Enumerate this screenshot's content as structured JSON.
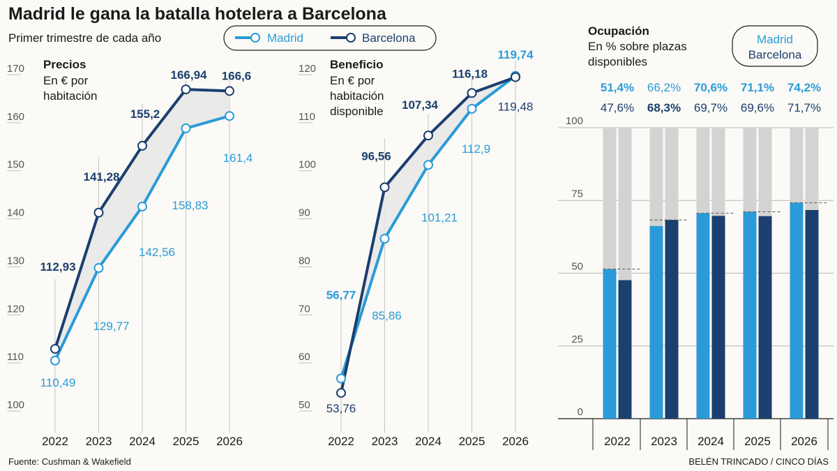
{
  "title": "Madrid le gana la batalla hotelera a Barcelona",
  "subtitle": "Primer trimestre de cada año",
  "legend": {
    "madrid": "Madrid",
    "barcelona": "Barcelona"
  },
  "colors": {
    "madrid": "#2a9bd8",
    "barcelona": "#1b3f6e",
    "fill": "#e8e8e8",
    "gray_bar": "#d3d3d3"
  },
  "footer": {
    "source": "Fuente: Cushman & Wakefield",
    "credit": "BELÉN TRINCADO / CINCO DÍAS"
  },
  "chart_data": [
    {
      "type": "line",
      "title": "Precios",
      "unit_lines": [
        "En € por",
        "habitación"
      ],
      "x": [
        "2022",
        "2023",
        "2024",
        "2025",
        "2026"
      ],
      "ylim": [
        100,
        170
      ],
      "yticks": [
        100,
        110,
        120,
        130,
        140,
        150,
        160,
        170
      ],
      "series": [
        {
          "name": "Madrid",
          "values": [
            110.49,
            129.77,
            142.56,
            158.83,
            161.4
          ],
          "labels": [
            "110,49",
            "129,77",
            "142,56",
            "158,83",
            "161,4"
          ]
        },
        {
          "name": "Barcelona",
          "values": [
            112.93,
            141.28,
            155.2,
            166.94,
            166.6
          ],
          "labels": [
            "112,93",
            "141,28",
            "155,2",
            "166,94",
            "166,6"
          ]
        }
      ]
    },
    {
      "type": "line",
      "title": "Beneficio",
      "unit_lines": [
        "En € por",
        "habitación",
        "disponible"
      ],
      "x": [
        "2022",
        "2023",
        "2024",
        "2025",
        "2026"
      ],
      "ylim": [
        50,
        120
      ],
      "yticks": [
        50,
        60,
        70,
        80,
        90,
        100,
        110,
        120
      ],
      "series": [
        {
          "name": "Madrid",
          "values": [
            56.77,
            85.86,
            101.21,
            112.9,
            119.74
          ],
          "labels": [
            "56,77",
            "85,86",
            "101,21",
            "112,9",
            "119,74"
          ]
        },
        {
          "name": "Barcelona",
          "values": [
            53.76,
            96.56,
            107.34,
            116.18,
            119.48
          ],
          "labels": [
            "53,76",
            "96,56",
            "107,34",
            "116,18",
            "119,48"
          ]
        }
      ]
    },
    {
      "type": "bar",
      "title": "Ocupación",
      "unit_lines": [
        "En % sobre plazas",
        "disponibles"
      ],
      "legend": [
        "Madrid",
        "Barcelona"
      ],
      "categories": [
        "2022",
        "2023",
        "2024",
        "2025",
        "2026"
      ],
      "ylim": [
        0,
        100
      ],
      "yticks": [
        0,
        25,
        50,
        75,
        100
      ],
      "series": [
        {
          "name": "Madrid",
          "values": [
            51.4,
            66.2,
            70.6,
            71.1,
            74.2
          ],
          "labels": [
            "51,4%",
            "66,2%",
            "70,6%",
            "71,1%",
            "74,2%"
          ]
        },
        {
          "name": "Barcelona",
          "values": [
            47.6,
            68.3,
            69.7,
            69.6,
            71.7
          ],
          "labels": [
            "47,6%",
            "68,3%",
            "69,7%",
            "69,6%",
            "71,7%"
          ]
        }
      ]
    }
  ]
}
